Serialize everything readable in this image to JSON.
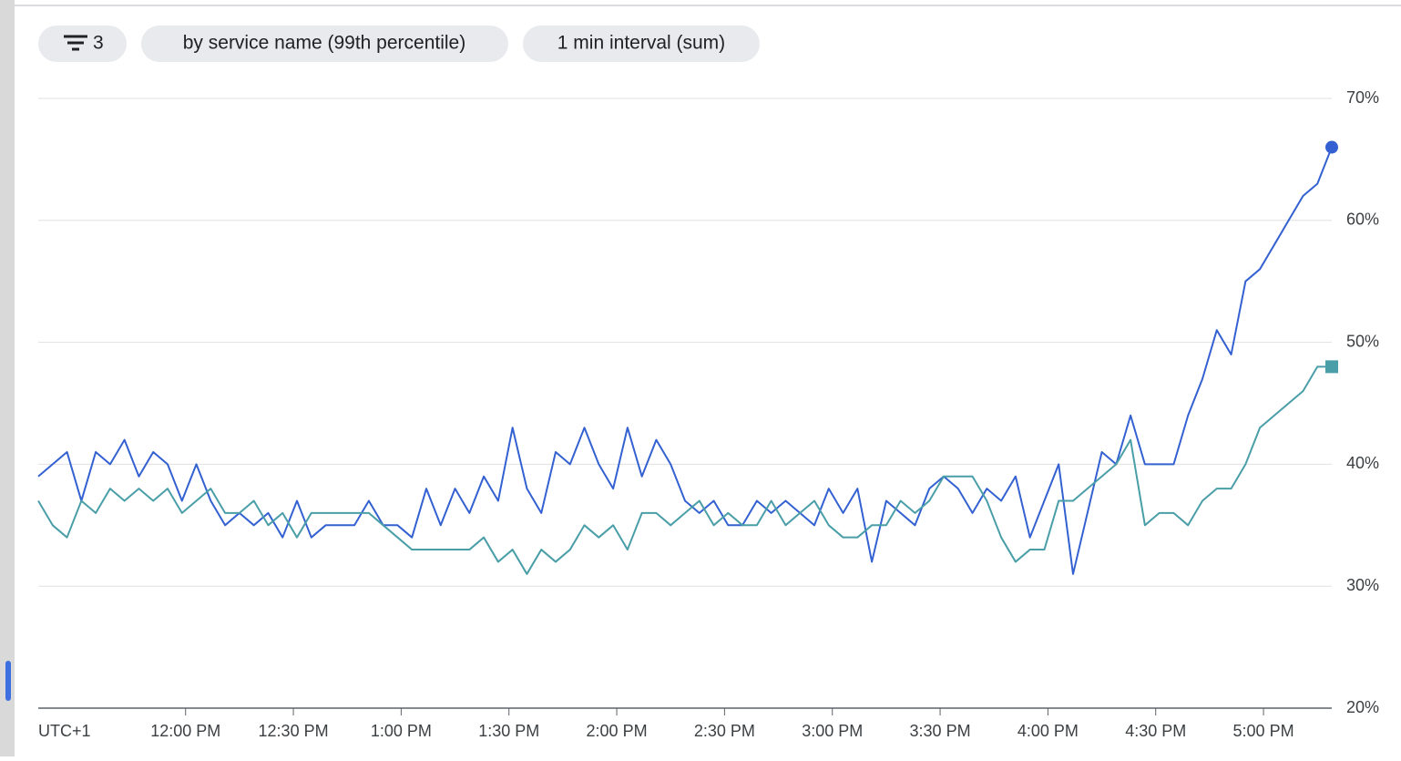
{
  "toolbar": {
    "chips": [
      "3",
      "by service name (99th percentile)",
      "1 min interval (sum)"
    ]
  },
  "chart_data": {
    "type": "line",
    "timezone_label": "UTC+1",
    "x": [
      "11:19",
      "11:23",
      "11:27",
      "11:31",
      "11:35",
      "11:39",
      "11:43",
      "11:47",
      "11:51",
      "11:55",
      "11:59",
      "12:03",
      "12:07",
      "12:11",
      "12:15",
      "12:19",
      "12:23",
      "12:27",
      "12:31",
      "12:35",
      "12:39",
      "12:43",
      "12:47",
      "12:51",
      "12:55",
      "12:59",
      "13:03",
      "13:07",
      "13:11",
      "13:15",
      "13:19",
      "13:23",
      "13:27",
      "13:31",
      "13:35",
      "13:39",
      "13:43",
      "13:47",
      "13:51",
      "13:55",
      "13:59",
      "14:03",
      "14:07",
      "14:11",
      "14:15",
      "14:19",
      "14:23",
      "14:27",
      "14:31",
      "14:35",
      "14:39",
      "14:43",
      "14:47",
      "14:51",
      "14:55",
      "14:59",
      "15:03",
      "15:07",
      "15:11",
      "15:15",
      "15:19",
      "15:23",
      "15:27",
      "15:31",
      "15:35",
      "15:39",
      "15:43",
      "15:47",
      "15:51",
      "15:55",
      "15:59",
      "16:03",
      "16:07",
      "16:11",
      "16:15",
      "16:19",
      "16:23",
      "16:27",
      "16:31",
      "16:35",
      "16:39",
      "16:43",
      "16:47",
      "16:51",
      "16:55",
      "16:59",
      "17:03",
      "17:07",
      "17:11",
      "17:15",
      "17:19"
    ],
    "series": [
      {
        "color": "#3461d1",
        "marker": "circle",
        "values": [
          39,
          40,
          41,
          37,
          41,
          40,
          42,
          39,
          41,
          40,
          37,
          40,
          37,
          35,
          36,
          35,
          36,
          34,
          37,
          34,
          35,
          35,
          35,
          37,
          35,
          35,
          34,
          38,
          35,
          38,
          36,
          39,
          37,
          43,
          38,
          36,
          41,
          40,
          43,
          40,
          38,
          43,
          39,
          42,
          40,
          37,
          36,
          37,
          35,
          35,
          37,
          36,
          37,
          36,
          35,
          38,
          36,
          38,
          32,
          37,
          36,
          35,
          38,
          39,
          38,
          36,
          38,
          37,
          39,
          34,
          37,
          40,
          31,
          36,
          41,
          40,
          44,
          40,
          40,
          40,
          44,
          47,
          51,
          49,
          55,
          56,
          58,
          60,
          62,
          63,
          66
        ]
      },
      {
        "color": "#4a9ea8",
        "marker": "square",
        "values": [
          37,
          35,
          34,
          37,
          36,
          38,
          37,
          38,
          37,
          38,
          36,
          37,
          38,
          36,
          36,
          37,
          35,
          36,
          34,
          36,
          36,
          36,
          36,
          36,
          35,
          34,
          33,
          33,
          33,
          33,
          33,
          34,
          32,
          33,
          31,
          33,
          32,
          33,
          35,
          34,
          35,
          33,
          36,
          36,
          35,
          36,
          37,
          35,
          36,
          35,
          35,
          37,
          35,
          36,
          37,
          35,
          34,
          34,
          35,
          35,
          37,
          36,
          37,
          39,
          39,
          39,
          37,
          34,
          32,
          33,
          33,
          37,
          37,
          38,
          39,
          40,
          42,
          35,
          36,
          36,
          35,
          37,
          38,
          38,
          40,
          43,
          44,
          45,
          46,
          48,
          48
        ]
      }
    ],
    "xlim": [
      "11:19",
      "17:19"
    ],
    "xticks": [
      {
        "value": "12:00",
        "label": "12:00 PM"
      },
      {
        "value": "12:30",
        "label": "12:30 PM"
      },
      {
        "value": "13:00",
        "label": "1:00 PM"
      },
      {
        "value": "13:30",
        "label": "1:30 PM"
      },
      {
        "value": "14:00",
        "label": "2:00 PM"
      },
      {
        "value": "14:30",
        "label": "2:30 PM"
      },
      {
        "value": "15:00",
        "label": "3:00 PM"
      },
      {
        "value": "15:30",
        "label": "3:30 PM"
      },
      {
        "value": "16:00",
        "label": "4:00 PM"
      },
      {
        "value": "16:30",
        "label": "4:30 PM"
      },
      {
        "value": "17:00",
        "label": "5:00 PM"
      }
    ],
    "ylim": [
      20,
      70
    ],
    "yticks": [
      {
        "value": 20,
        "label": "20%"
      },
      {
        "value": 30,
        "label": "30%"
      },
      {
        "value": 40,
        "label": "40%"
      },
      {
        "value": 50,
        "label": "50%"
      },
      {
        "value": 60,
        "label": "60%"
      },
      {
        "value": 70,
        "label": "70%"
      }
    ],
    "grid": true
  }
}
